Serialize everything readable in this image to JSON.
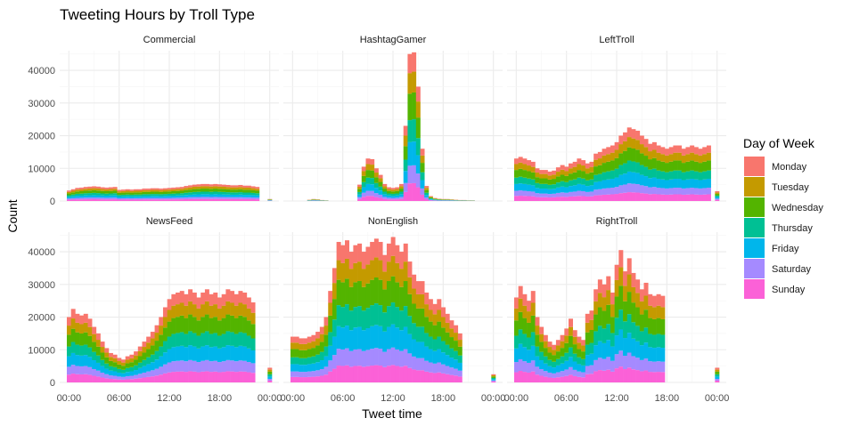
{
  "chart_data": {
    "type": "bar",
    "subtype": "stacked-histogram-facets",
    "title": "Tweeting Hours by Troll Type",
    "xlabel": "Tweet time",
    "ylabel": "Count",
    "x_ticks": [
      "00:00",
      "06:00",
      "12:00",
      "18:00",
      "00:00"
    ],
    "ylim_top": [
      0,
      46000
    ],
    "ylim_bottom": [
      0,
      46000
    ],
    "y_ticks": [
      0,
      10000,
      20000,
      30000,
      40000
    ],
    "grid": true,
    "legend": {
      "title": "Day of Week",
      "position": "right",
      "entries": [
        "Monday",
        "Tuesday",
        "Wednesday",
        "Thursday",
        "Friday",
        "Saturday",
        "Sunday"
      ]
    },
    "colors": [
      "#F8766D",
      "#C49A00",
      "#53B400",
      "#00C094",
      "#00B6EB",
      "#A58AFF",
      "#FB61D7"
    ],
    "bin_centers_hours": [
      0,
      0.5,
      1,
      1.5,
      2,
      2.5,
      3,
      3.5,
      4,
      4.5,
      5,
      5.5,
      6,
      6.5,
      7,
      7.5,
      8,
      8.5,
      9,
      9.5,
      10,
      10.5,
      11,
      11.5,
      12,
      12.5,
      13,
      13.5,
      14,
      14.5,
      15,
      15.5,
      16,
      16.5,
      17,
      17.5,
      18,
      18.5,
      19,
      19.5,
      20,
      20.5,
      21,
      21.5,
      22,
      22.5,
      23,
      23.5,
      24
    ],
    "panels": [
      {
        "name": "Commercial",
        "totals": [
          3200,
          3600,
          4000,
          4100,
          4300,
          4400,
          4500,
          4400,
          4200,
          4100,
          4200,
          4300,
          3400,
          3500,
          3600,
          3500,
          3600,
          3600,
          3800,
          3800,
          3900,
          3900,
          3800,
          3900,
          4000,
          4100,
          4200,
          4300,
          4600,
          4800,
          5000,
          5100,
          5200,
          5200,
          5100,
          5200,
          5100,
          5000,
          4900,
          4800,
          4800,
          4900,
          4700,
          4700,
          4500,
          4300,
          0,
          0,
          600
        ]
      },
      {
        "name": "HashtagGamer",
        "totals": [
          0,
          0,
          0,
          0,
          400,
          600,
          500,
          300,
          200,
          0,
          0,
          0,
          0,
          0,
          0,
          0,
          5000,
          10500,
          13000,
          12800,
          10000,
          8000,
          5200,
          4200,
          4000,
          4200,
          5200,
          23000,
          45000,
          45500,
          35000,
          16000,
          4600,
          1500,
          900,
          700,
          600,
          600,
          500,
          400,
          300,
          300,
          200,
          200,
          0,
          0,
          0,
          0,
          0
        ]
      },
      {
        "name": "LeftTroll",
        "totals": [
          13000,
          13500,
          13000,
          12500,
          12000,
          10000,
          9500,
          9500,
          9000,
          9300,
          10300,
          11000,
          10500,
          11500,
          12000,
          13000,
          12500,
          11500,
          12000,
          14500,
          15000,
          16000,
          16500,
          17000,
          18000,
          20000,
          21000,
          22500,
          22000,
          21500,
          20000,
          19000,
          17500,
          18000,
          17000,
          16500,
          16000,
          16500,
          17000,
          17000,
          16000,
          16500,
          17000,
          16500,
          16000,
          16500,
          17000,
          0,
          3000
        ]
      },
      {
        "name": "NewsFeed",
        "totals": [
          20000,
          22500,
          21000,
          20500,
          21000,
          19500,
          17000,
          15000,
          12500,
          10500,
          9000,
          8500,
          7500,
          7000,
          8000,
          8500,
          9500,
          11000,
          12500,
          14000,
          15500,
          17500,
          20000,
          23000,
          25500,
          27000,
          27500,
          28000,
          27000,
          28500,
          27500,
          26000,
          27500,
          28500,
          27000,
          27500,
          26000,
          27000,
          28500,
          28000,
          27000,
          28000,
          27500,
          26000,
          24500,
          0,
          0,
          0,
          4500
        ]
      },
      {
        "name": "NonEnglish",
        "totals": [
          14000,
          14000,
          13500,
          13500,
          14000,
          14500,
          15500,
          17000,
          20000,
          28000,
          35000,
          43000,
          42000,
          43500,
          40000,
          42000,
          42500,
          40000,
          41500,
          43000,
          44000,
          43000,
          39000,
          42500,
          44500,
          42000,
          40000,
          42500,
          37000,
          33000,
          31000,
          31000,
          27500,
          25500,
          24000,
          25500,
          23000,
          21000,
          19000,
          17500,
          15000,
          0,
          0,
          0,
          0,
          0,
          0,
          0,
          2500
        ]
      },
      {
        "name": "RightTroll",
        "totals": [
          26000,
          29500,
          27000,
          25000,
          28000,
          20000,
          17000,
          14500,
          12500,
          11500,
          13000,
          14500,
          16500,
          19500,
          16000,
          14000,
          13000,
          21000,
          22000,
          28500,
          31500,
          30000,
          32500,
          27500,
          36000,
          40500,
          34000,
          38000,
          33500,
          31500,
          28500,
          30500,
          27000,
          26500,
          27000,
          26500,
          0,
          0,
          0,
          0,
          0,
          0,
          0,
          0,
          0,
          0,
          0,
          0,
          4500
        ]
      }
    ]
  }
}
